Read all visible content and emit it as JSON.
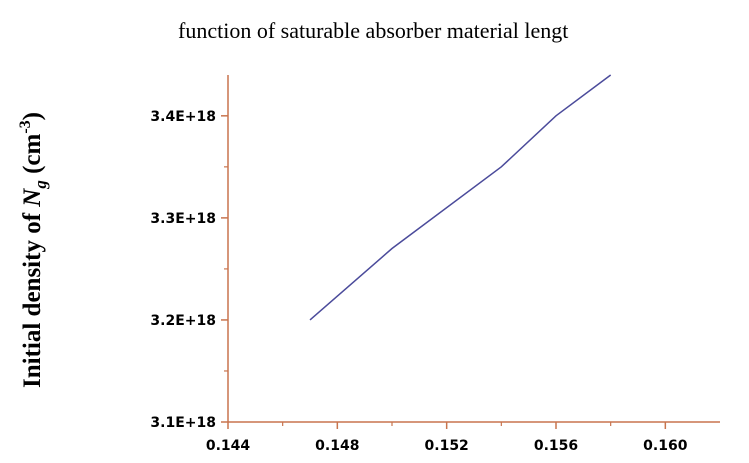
{
  "chart_data": {
    "type": "line",
    "title": "function of saturable absorber material lengt",
    "ylabel_parts": [
      "Initial density of ",
      "N",
      "g",
      " (cm",
      "-3",
      ")"
    ],
    "x": [
      0.147,
      0.15,
      0.154,
      0.156,
      0.158
    ],
    "series": [
      {
        "color": "#4b4b9b",
        "values": [
          3.2e+18,
          3.27e+18,
          3.35e+18,
          3.4e+18,
          3.44e+18
        ]
      }
    ],
    "xlim": [
      0.144,
      0.162
    ],
    "xticks": [
      0.144,
      0.148,
      0.152,
      0.156,
      {
        "value": 0.16,
        "label": "0.160"
      }
    ],
    "xminor_ticks": [
      0.146,
      0.15,
      0.154,
      0.158
    ],
    "ylim": [
      3.1e+18,
      3.44e+18
    ],
    "yticks": [
      {
        "value": 3.1e+18,
        "label": "3.1E+18"
      },
      {
        "value": 3.2e+18,
        "label": "3.2E+18"
      },
      {
        "value": 3.3e+18,
        "label": "3.3E+18"
      },
      {
        "value": 3.4e+18,
        "label": "3.4E+18"
      }
    ],
    "yminor_ticks": [
      3.15e+18,
      3.25e+18,
      3.35e+18
    ],
    "axis_color": "#c8744e"
  }
}
